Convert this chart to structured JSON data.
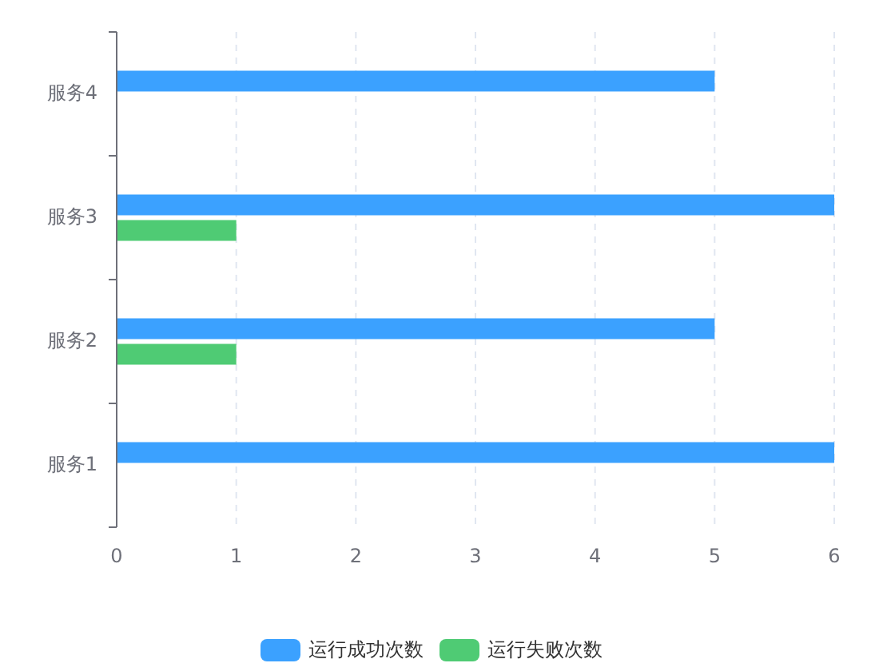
{
  "chart_data": {
    "type": "bar",
    "orientation": "horizontal",
    "categories": [
      "服务4",
      "服务3",
      "服务2",
      "服务1"
    ],
    "series": [
      {
        "name": "运行成功次数",
        "color": "#3ba1ff",
        "values": [
          5,
          6,
          5,
          6
        ]
      },
      {
        "name": "运行失败次数",
        "color": "#4fcb74",
        "values": [
          0,
          1,
          1,
          0
        ]
      }
    ],
    "xlim": [
      0,
      6
    ],
    "xticks": [
      0,
      1,
      2,
      3,
      4,
      5,
      6
    ],
    "grid": "x",
    "legend": "bottom"
  }
}
